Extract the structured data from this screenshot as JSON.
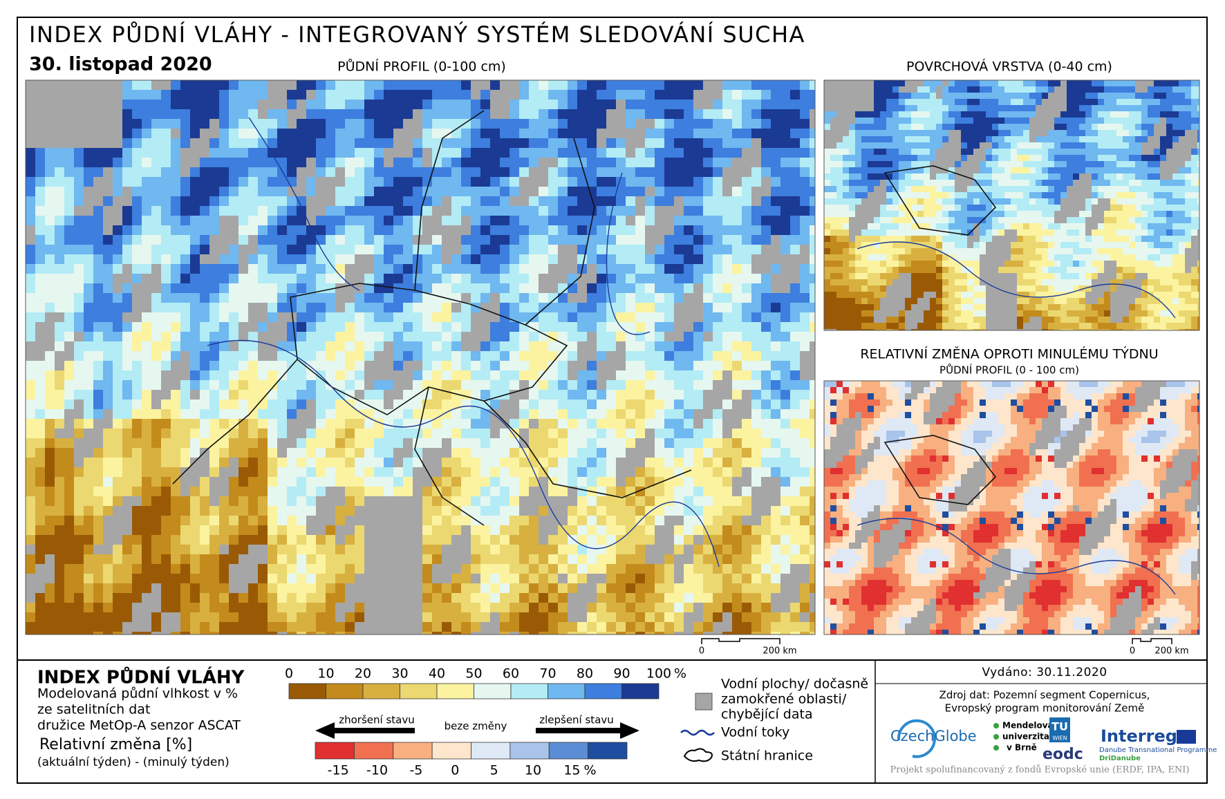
{
  "header": {
    "title": "INDEX PŮDNÍ VLÁHY - INTEGROVANÝ SYSTÉM SLEDOVÁNÍ SUCHA",
    "date": "30. listopad 2020"
  },
  "maps": [
    {
      "title": "PŮDNÍ PROFIL (0-100 cm)",
      "scale": {
        "start": 0,
        "end": "200 km"
      }
    },
    {
      "title": "POVRCHOVÁ VRSTVA (0-40 cm)"
    },
    {
      "title": "RELATIVNÍ ZMĚNA OPROTI MINULÉMU TÝDNU",
      "subtitle": "PŮDNÍ PROFIL (0 - 100 cm)",
      "scale": {
        "start": 0,
        "end": "200 km"
      }
    }
  ],
  "legend": {
    "title": "INDEX PŮDNÍ VLÁHY",
    "description": [
      "Modelovaná půdní vlhkost v %",
      "ze satelitních dat",
      "družice MetOp-A senzor ASCAT"
    ],
    "change_title": "Relativní změna [%]",
    "change_note": "(aktuální týden) - (minulý týden)",
    "index_scale": {
      "ticks": [
        0,
        10,
        20,
        30,
        40,
        50,
        60,
        70,
        80,
        90,
        100
      ],
      "unit": "%",
      "colors": [
        "#9a5a05",
        "#c38b1c",
        "#d8b040",
        "#ecd870",
        "#fbf3a0",
        "#e6f7f0",
        "#b3ecf5",
        "#6fb8f0",
        "#3d7ede",
        "#1b3a94"
      ]
    },
    "change_scale": {
      "arrow_left": "zhoršení stavu",
      "middle": "beze změny",
      "arrow_right": "zlepšení stavu",
      "ticks": [
        -15,
        -10,
        -5,
        0,
        5,
        10,
        15
      ],
      "unit": "%",
      "colors": [
        "#e03030",
        "#f07050",
        "#f8b080",
        "#fde6cc",
        "#dfe8f5",
        "#a8c4ea",
        "#5b8dd6",
        "#1f4ea0"
      ]
    },
    "symbols": {
      "water": [
        "Vodní plochy/ dočasně",
        "zamokřené oblasti/",
        "chybějící data"
      ],
      "rivers": "Vodní toky",
      "borders": "Státní hranice"
    }
  },
  "footer": {
    "issued": "Vydáno: 30.11.2020",
    "source": [
      "Zdroj dat: Pozemní segment Copernicus,",
      "Evropský program monitorování Země"
    ],
    "logos": {
      "czechglobe": "CzechGlobe",
      "mendel": [
        "Mendelova",
        "univerzita",
        "v Brně"
      ],
      "tu": "TU",
      "wien": "WIEN",
      "eodc": "eodc",
      "interreg": "Interreg",
      "programme": "Danube Transnational Programme",
      "project": "DriDanube"
    },
    "funding": "Projekt spolufinancovaný z fondů Evropské unie (ERDF, IPA, ENI)"
  }
}
